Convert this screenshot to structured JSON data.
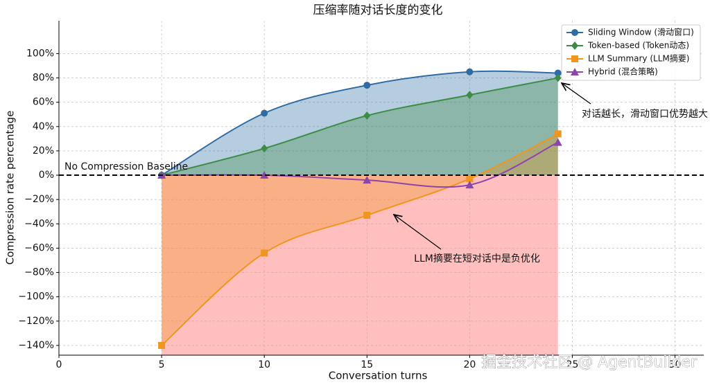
{
  "chart_data": {
    "type": "line",
    "title": "压缩率随对话长度的变化",
    "x_label": "Conversation turns",
    "y_label": "Compression rate percentage",
    "x": [
      5,
      10,
      15,
      20,
      24.3
    ],
    "series": [
      {
        "name": "Sliding Window (滑动窗口)",
        "color": "#2f6ca3",
        "marker": "circle",
        "values": [
          0,
          51,
          74,
          85,
          84
        ]
      },
      {
        "name": "Token-based (Token动态)",
        "color": "#3c8c45",
        "marker": "diamond",
        "values": [
          0,
          22,
          49,
          66,
          80
        ]
      },
      {
        "name": "LLM Summary (LLM摘要)",
        "color": "#f0961e",
        "marker": "square",
        "values": [
          -140,
          -64,
          -33,
          -3,
          34
        ]
      },
      {
        "name": "Hybrid (混合策略)",
        "color": "#8e44ad",
        "marker": "triangle",
        "values": [
          0,
          0,
          -4,
          -8,
          27
        ]
      }
    ],
    "xlim": [
      0,
      31.4
    ],
    "xticks": [
      0,
      5,
      10,
      15,
      20,
      25,
      30
    ],
    "ylim": [
      -148,
      127
    ],
    "yticks": [
      {
        "value": -140,
        "label": "−140%"
      },
      {
        "value": -120,
        "label": "−120%"
      },
      {
        "value": -100,
        "label": "−100%"
      },
      {
        "value": -80,
        "label": "−80%"
      },
      {
        "value": -60,
        "label": "−60%"
      },
      {
        "value": -40,
        "label": "−40%"
      },
      {
        "value": -20,
        "label": "−20%"
      },
      {
        "value": 0,
        "label": "0%"
      },
      {
        "value": 20,
        "label": "20%"
      },
      {
        "value": 40,
        "label": "40%"
      },
      {
        "value": 60,
        "label": "60%"
      },
      {
        "value": 80,
        "label": "80%"
      },
      {
        "value": 100,
        "label": "100%"
      }
    ],
    "grid": true,
    "legend": "upper right",
    "baseline_label": "No Compression Baseline",
    "annotations": [
      "对话越长，滑动窗口优势越大",
      "LLM摘要在短对话中是负优化"
    ],
    "watermark": "掘金技术社区 @ AgentBuilder"
  }
}
